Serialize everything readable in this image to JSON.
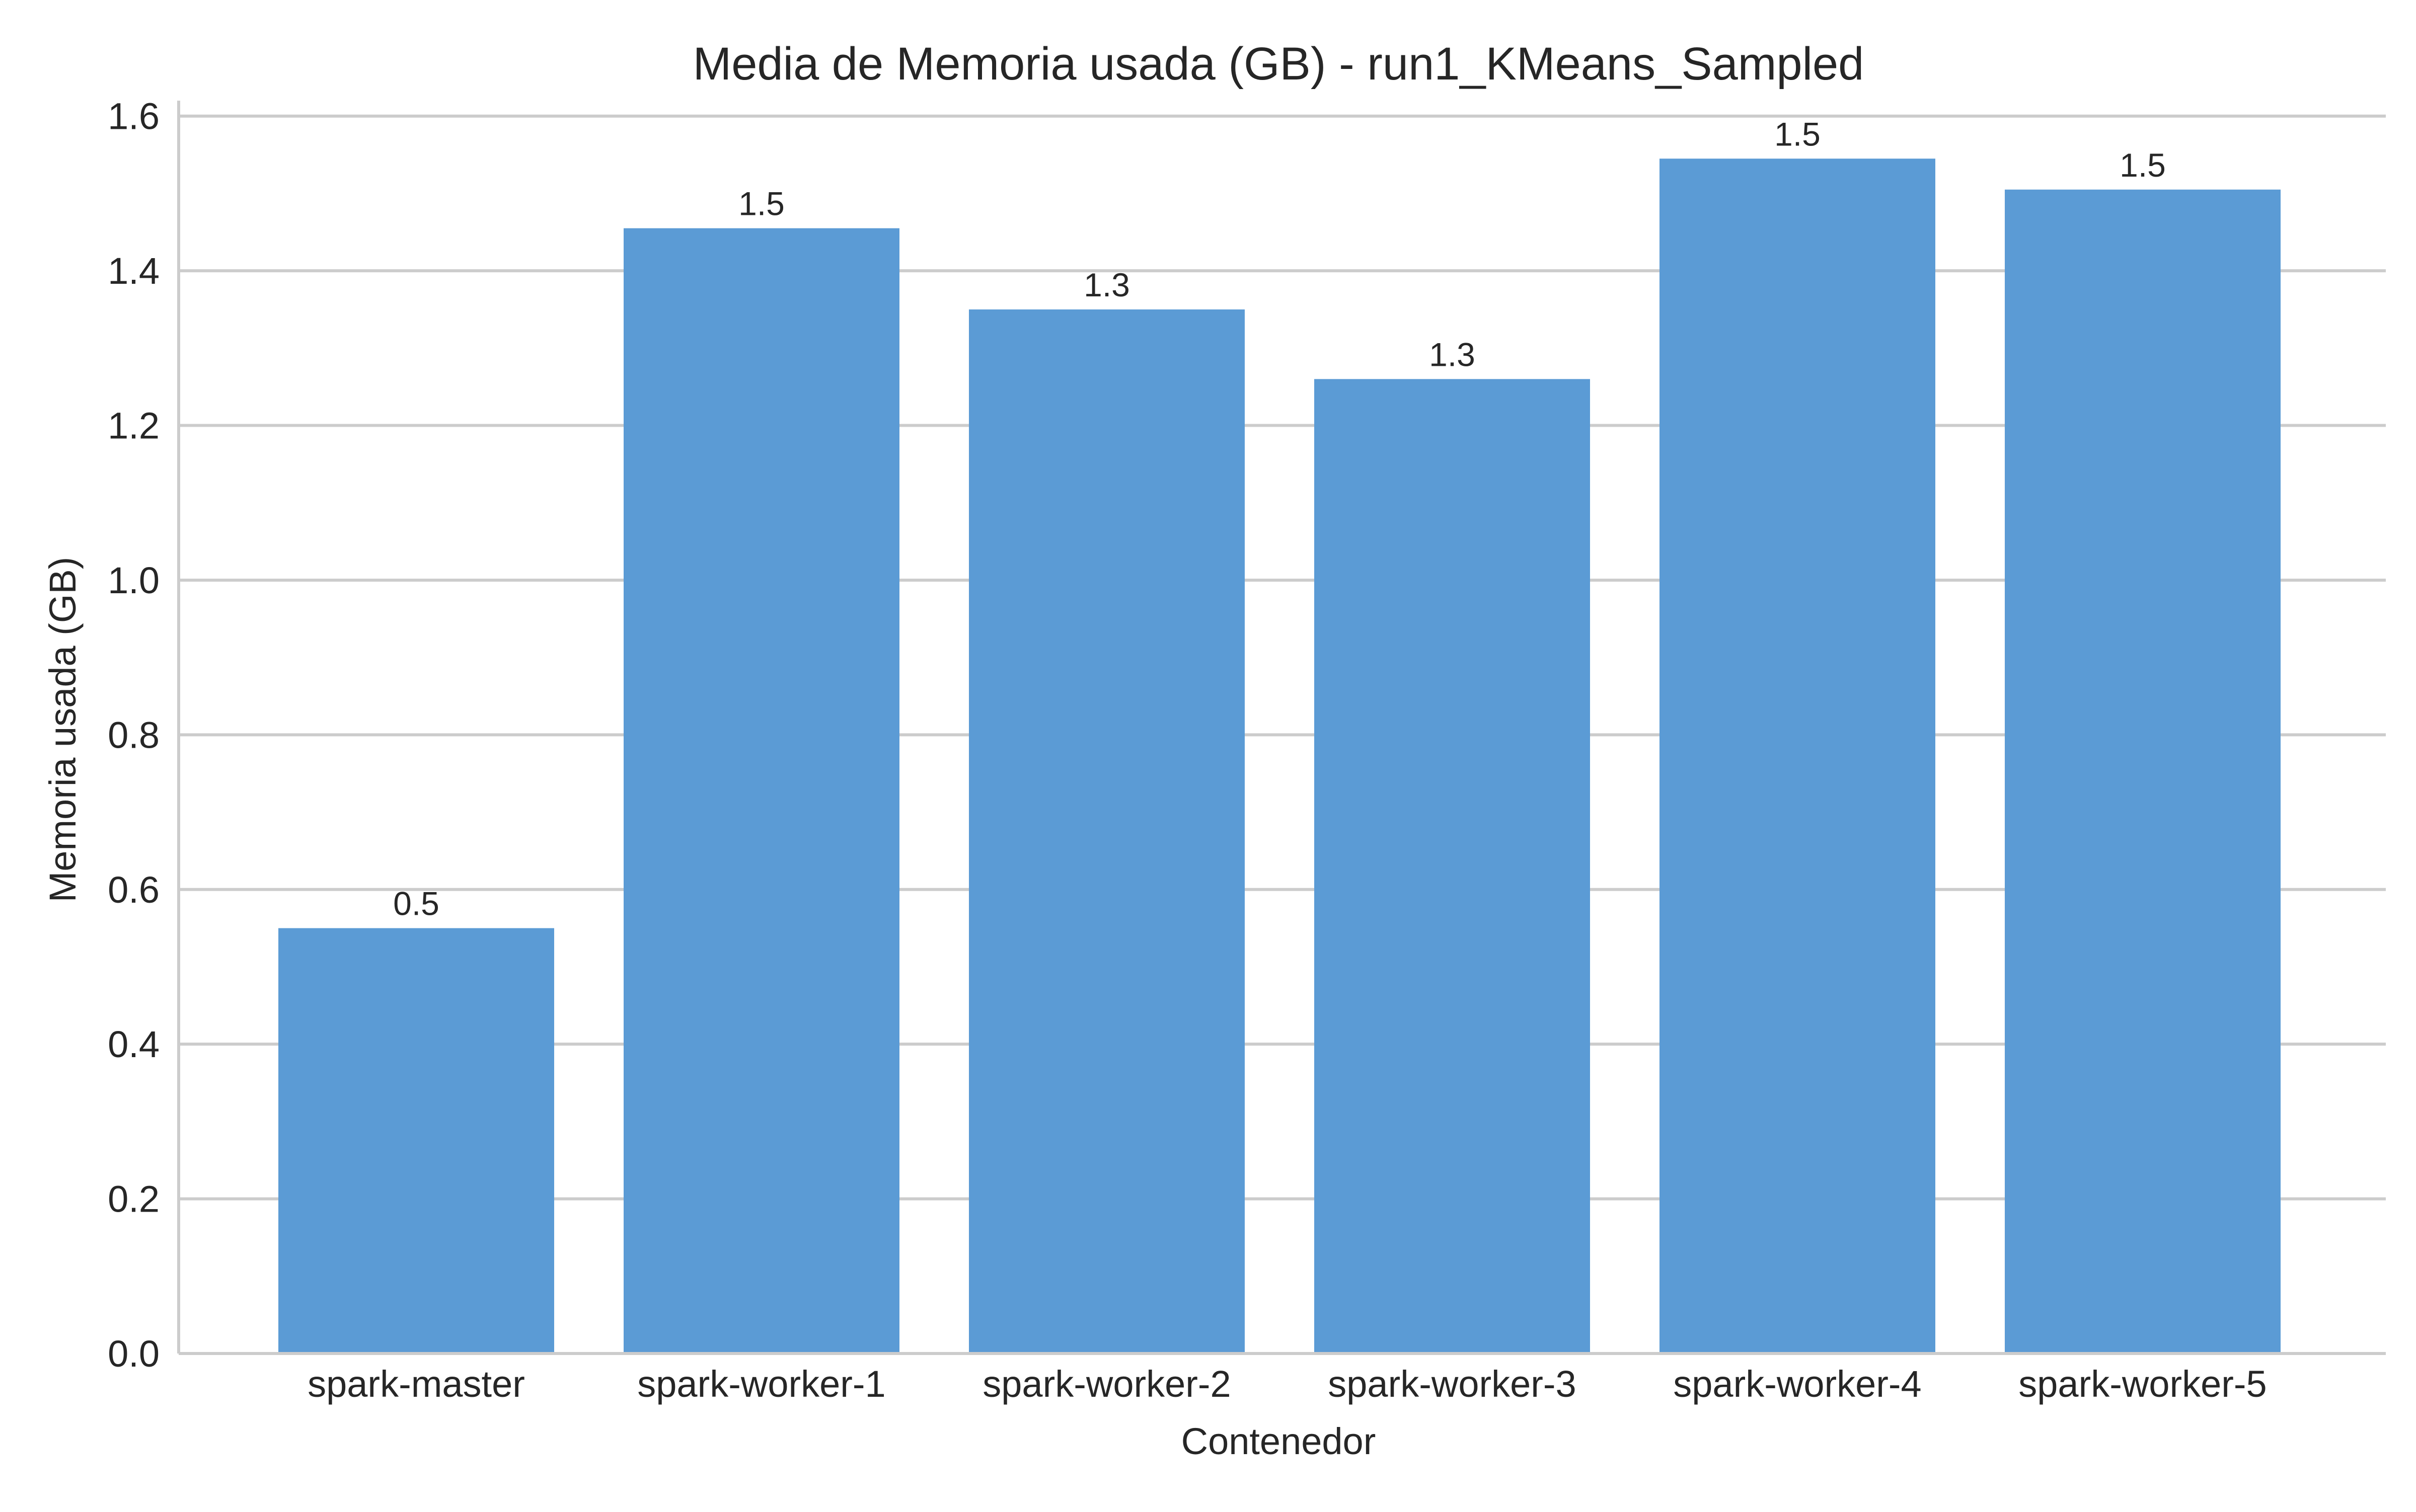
{
  "chart_data": {
    "type": "bar",
    "title": "Media de Memoria usada (GB) - run1_KMeans_Sampled",
    "xlabel": "Contenedor",
    "ylabel": "Memoria usada (GB)",
    "categories": [
      "spark-master",
      "spark-worker-1",
      "spark-worker-2",
      "spark-worker-3",
      "spark-worker-4",
      "spark-worker-5"
    ],
    "values": [
      0.55,
      1.455,
      1.35,
      1.26,
      1.545,
      1.505
    ],
    "data_labels": [
      "0.5",
      "1.5",
      "1.3",
      "1.3",
      "1.5",
      "1.5"
    ],
    "ylim": [
      0,
      1.62
    ],
    "yticks": [
      0.0,
      0.2,
      0.4,
      0.6,
      0.8,
      1.0,
      1.2,
      1.4,
      1.6
    ],
    "ytick_labels": [
      "0.0",
      "0.2",
      "0.4",
      "0.6",
      "0.8",
      "1.0",
      "1.2",
      "1.4",
      "1.6"
    ],
    "grid": "horizontal",
    "bar_color": "#5b9bd5"
  }
}
